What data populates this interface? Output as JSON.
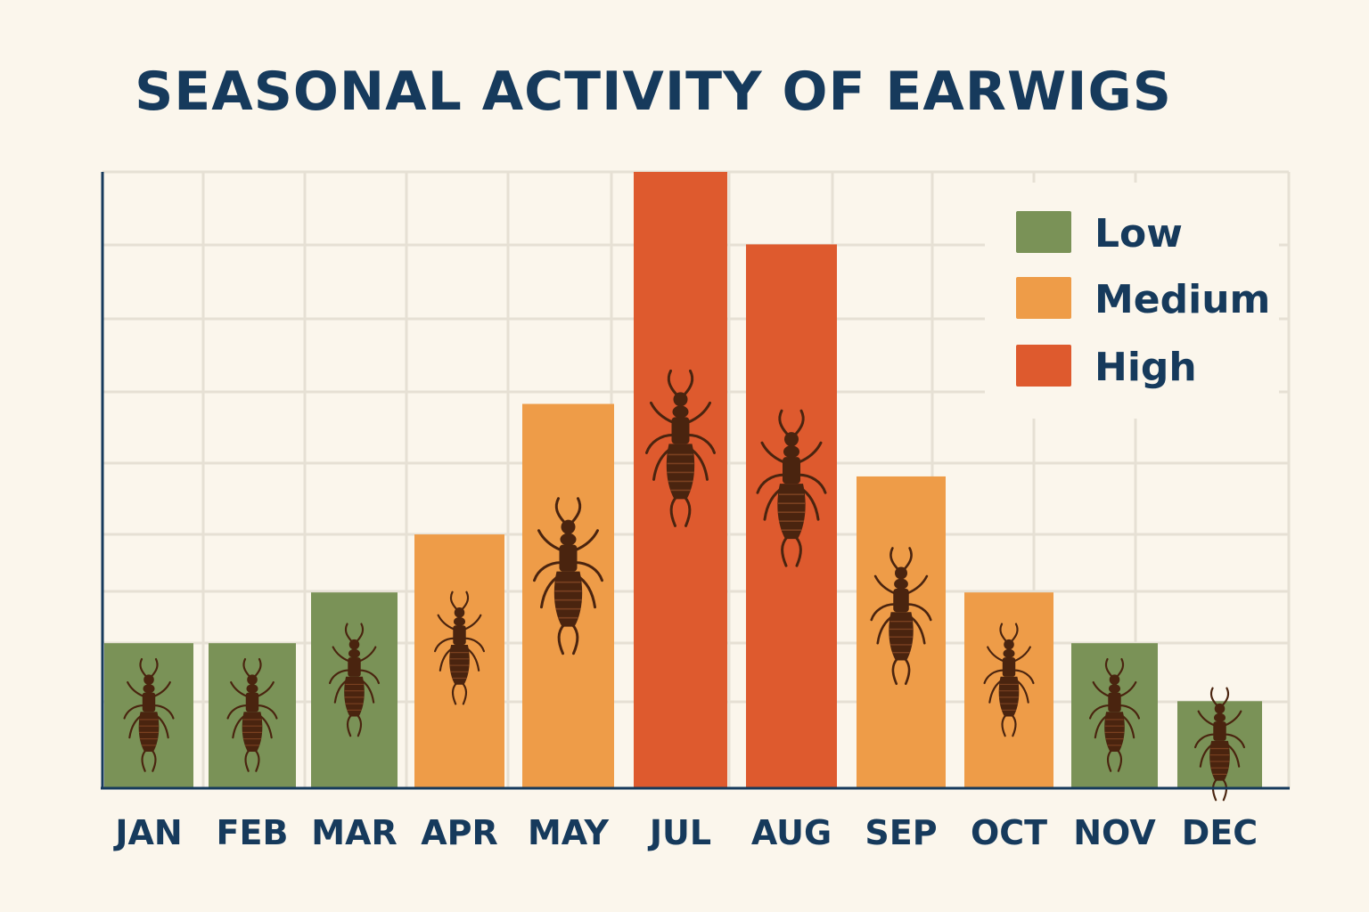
{
  "chart_data": {
    "type": "bar",
    "title": "SEASONAL ACTIVITY OF EARWIGS",
    "xlabel": "",
    "ylabel": "",
    "categories": [
      "JAN",
      "FEB",
      "MAR",
      "APR",
      "MAY",
      "JUL",
      "AUG",
      "SEP",
      "OCT",
      "NOV",
      "DEC"
    ],
    "values": [
      2,
      2,
      2.7,
      3.5,
      5.3,
      8.5,
      7.5,
      4.3,
      2.7,
      2,
      1.2
    ],
    "levels": [
      "Low",
      "Low",
      "Low",
      "Medium",
      "Medium",
      "High",
      "High",
      "Medium",
      "Medium",
      "Low",
      "Low"
    ],
    "ylim": [
      0,
      8.5
    ],
    "grid": true,
    "legend_position": "top-right",
    "legend": [
      {
        "name": "Low",
        "color": "#7A9257"
      },
      {
        "name": "Medium",
        "color": "#EE9C48"
      },
      {
        "name": "High",
        "color": "#DE5A2E"
      }
    ],
    "bar_icon": "earwig-icon"
  }
}
